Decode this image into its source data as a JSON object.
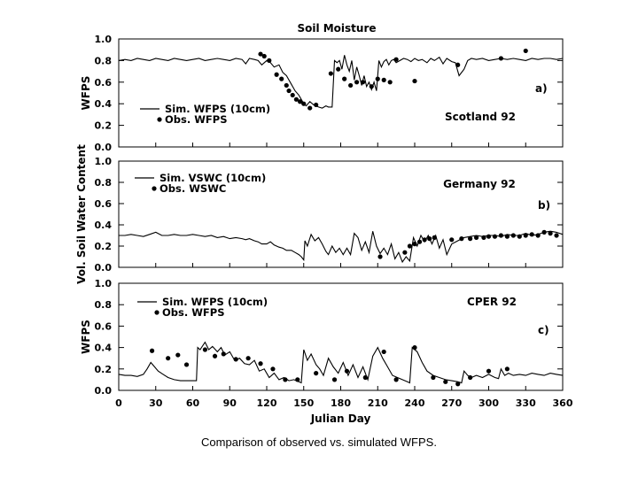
{
  "figure": {
    "title": "Soil Moisture",
    "caption": "Comparison of observed vs. simulated WFPS."
  },
  "chart_data": [
    {
      "type": "line",
      "panel": "a)",
      "site": "Scotland 92",
      "ylabel": "WFPS",
      "xlabel": "",
      "xlim": [
        0,
        360
      ],
      "ylim": [
        0,
        1.0
      ],
      "yticks": [
        "0.0",
        "0.2",
        "0.4",
        "0.6",
        "0.8",
        "1.0"
      ],
      "legend": [
        "Sim. WFPS (10cm)",
        "Obs. WFPS"
      ],
      "series": [
        {
          "name": "Sim. WFPS (10cm)",
          "style": "line",
          "x": [
            0,
            5,
            10,
            15,
            20,
            25,
            30,
            35,
            40,
            45,
            50,
            55,
            60,
            65,
            70,
            75,
            80,
            85,
            90,
            95,
            100,
            103,
            106,
            110,
            113,
            116,
            120,
            123,
            126,
            130,
            133,
            136,
            140,
            143,
            146,
            148,
            150,
            152,
            155,
            158,
            162,
            165,
            168,
            170,
            173,
            175,
            177,
            179,
            181,
            183,
            185,
            187,
            189,
            191,
            193,
            195,
            197,
            199,
            201,
            203,
            205,
            207,
            209,
            211,
            213,
            215,
            217,
            219,
            221,
            223,
            225,
            228,
            231,
            234,
            237,
            240,
            243,
            246,
            250,
            253,
            256,
            260,
            263,
            266,
            270,
            273,
            276,
            280,
            283,
            286,
            290,
            295,
            300,
            305,
            310,
            315,
            320,
            325,
            330,
            335,
            340,
            345,
            350,
            355,
            360
          ],
          "y": [
            0.8,
            0.81,
            0.8,
            0.82,
            0.81,
            0.8,
            0.82,
            0.81,
            0.8,
            0.82,
            0.81,
            0.8,
            0.81,
            0.82,
            0.8,
            0.81,
            0.82,
            0.81,
            0.8,
            0.82,
            0.81,
            0.77,
            0.82,
            0.81,
            0.8,
            0.76,
            0.8,
            0.78,
            0.74,
            0.76,
            0.69,
            0.66,
            0.58,
            0.52,
            0.48,
            0.44,
            0.4,
            0.38,
            0.42,
            0.39,
            0.37,
            0.36,
            0.38,
            0.37,
            0.37,
            0.8,
            0.78,
            0.8,
            0.72,
            0.85,
            0.76,
            0.7,
            0.8,
            0.62,
            0.74,
            0.66,
            0.57,
            0.66,
            0.56,
            0.6,
            0.53,
            0.6,
            0.52,
            0.8,
            0.74,
            0.79,
            0.81,
            0.76,
            0.8,
            0.81,
            0.78,
            0.8,
            0.82,
            0.81,
            0.79,
            0.82,
            0.8,
            0.81,
            0.78,
            0.82,
            0.8,
            0.83,
            0.77,
            0.82,
            0.79,
            0.78,
            0.66,
            0.72,
            0.8,
            0.82,
            0.81,
            0.82,
            0.8,
            0.81,
            0.82,
            0.81,
            0.82,
            0.81,
            0.8,
            0.82,
            0.81,
            0.82,
            0.82,
            0.81,
            0.82
          ]
        },
        {
          "name": "Obs. WFPS",
          "style": "points",
          "x": [
            115,
            118,
            122,
            128,
            132,
            136,
            138,
            141,
            144,
            147,
            150,
            155,
            160,
            172,
            178,
            183,
            188,
            193,
            198,
            205,
            210,
            215,
            220,
            225,
            240,
            275,
            310,
            330
          ],
          "y": [
            0.86,
            0.84,
            0.8,
            0.67,
            0.63,
            0.57,
            0.52,
            0.48,
            0.44,
            0.42,
            0.4,
            0.36,
            0.39,
            0.68,
            0.72,
            0.63,
            0.57,
            0.6,
            0.6,
            0.56,
            0.63,
            0.62,
            0.6,
            0.81,
            0.61,
            0.76,
            0.82,
            0.89
          ]
        }
      ]
    },
    {
      "type": "line",
      "panel": "b)",
      "site": "Germany 92",
      "ylabel": "Vol. Soil Water Content",
      "xlabel": "",
      "xlim": [
        0,
        360
      ],
      "ylim": [
        0,
        1.0
      ],
      "yticks": [
        "0.0",
        "0.2",
        "0.4",
        "0.6",
        "0.8",
        "1.0"
      ],
      "legend": [
        "Sim. VSWC (10cm)",
        "Obs. WSWC"
      ],
      "series": [
        {
          "name": "Sim. VSWC (10cm)",
          "style": "line",
          "x": [
            0,
            5,
            10,
            15,
            20,
            25,
            30,
            35,
            40,
            45,
            50,
            55,
            60,
            65,
            70,
            75,
            80,
            85,
            90,
            95,
            100,
            103,
            106,
            110,
            113,
            116,
            120,
            123,
            126,
            130,
            133,
            136,
            140,
            143,
            146,
            148,
            150,
            151,
            153,
            156,
            159,
            162,
            165,
            168,
            170,
            173,
            176,
            179,
            182,
            185,
            188,
            191,
            194,
            197,
            200,
            203,
            206,
            209,
            212,
            215,
            218,
            221,
            224,
            227,
            230,
            233,
            236,
            239,
            242,
            245,
            248,
            251,
            254,
            257,
            260,
            263,
            266,
            270,
            275,
            280,
            285,
            290,
            295,
            300,
            305,
            310,
            315,
            320,
            325,
            330,
            335,
            340,
            345,
            350,
            355,
            360
          ],
          "y": [
            0.3,
            0.3,
            0.31,
            0.3,
            0.29,
            0.31,
            0.33,
            0.3,
            0.3,
            0.31,
            0.3,
            0.3,
            0.31,
            0.3,
            0.29,
            0.3,
            0.28,
            0.29,
            0.27,
            0.28,
            0.27,
            0.26,
            0.27,
            0.25,
            0.24,
            0.22,
            0.22,
            0.24,
            0.21,
            0.19,
            0.18,
            0.16,
            0.16,
            0.14,
            0.12,
            0.1,
            0.07,
            0.25,
            0.2,
            0.31,
            0.25,
            0.28,
            0.22,
            0.15,
            0.12,
            0.2,
            0.14,
            0.18,
            0.12,
            0.18,
            0.12,
            0.32,
            0.28,
            0.16,
            0.24,
            0.14,
            0.34,
            0.2,
            0.13,
            0.18,
            0.12,
            0.22,
            0.08,
            0.14,
            0.05,
            0.1,
            0.06,
            0.28,
            0.2,
            0.3,
            0.24,
            0.3,
            0.22,
            0.3,
            0.18,
            0.26,
            0.12,
            0.22,
            0.25,
            0.28,
            0.29,
            0.3,
            0.29,
            0.3,
            0.3,
            0.29,
            0.31,
            0.3,
            0.3,
            0.32,
            0.3,
            0.31,
            0.33,
            0.34,
            0.33,
            0.31
          ]
        },
        {
          "name": "Obs. WSWC",
          "style": "points",
          "x": [
            212,
            232,
            236,
            240,
            244,
            248,
            252,
            256,
            270,
            278,
            285,
            290,
            296,
            300,
            305,
            310,
            315,
            320,
            325,
            330,
            335,
            340,
            345,
            350,
            355
          ],
          "y": [
            0.1,
            0.14,
            0.2,
            0.22,
            0.24,
            0.26,
            0.27,
            0.28,
            0.26,
            0.27,
            0.27,
            0.28,
            0.28,
            0.29,
            0.29,
            0.3,
            0.29,
            0.3,
            0.29,
            0.3,
            0.31,
            0.3,
            0.33,
            0.32,
            0.3
          ]
        }
      ]
    },
    {
      "type": "line",
      "panel": "c)",
      "site": "CPER 92",
      "ylabel": "WFPS",
      "xlabel": "Julian Day",
      "xlim": [
        0,
        360
      ],
      "xticks": [
        "0",
        "30",
        "60",
        "90",
        "120",
        "150",
        "180",
        "210",
        "240",
        "270",
        "300",
        "330",
        "360"
      ],
      "ylim": [
        0,
        1.0
      ],
      "yticks": [
        "0.0",
        "0.2",
        "0.4",
        "0.6",
        "0.8",
        "1.0"
      ],
      "legend": [
        "Sim. WFPS (10cm)",
        "Obs. WFPS"
      ],
      "series": [
        {
          "name": "Sim. WFPS (10cm)",
          "style": "line",
          "x": [
            0,
            5,
            10,
            15,
            20,
            23,
            26,
            29,
            32,
            36,
            40,
            45,
            50,
            55,
            60,
            63,
            64,
            66,
            70,
            73,
            76,
            80,
            83,
            86,
            90,
            94,
            98,
            102,
            106,
            110,
            114,
            118,
            122,
            126,
            130,
            134,
            138,
            142,
            146,
            148,
            150,
            153,
            156,
            160,
            163,
            166,
            170,
            174,
            178,
            182,
            186,
            190,
            194,
            198,
            202,
            206,
            210,
            214,
            218,
            222,
            226,
            230,
            234,
            236,
            238,
            242,
            246,
            250,
            255,
            260,
            265,
            270,
            275,
            278,
            280,
            283,
            286,
            290,
            295,
            300,
            305,
            308,
            310,
            313,
            316,
            320,
            325,
            330,
            335,
            340,
            345,
            350,
            355,
            360
          ],
          "y": [
            0.15,
            0.14,
            0.14,
            0.13,
            0.15,
            0.2,
            0.26,
            0.22,
            0.18,
            0.15,
            0.12,
            0.1,
            0.09,
            0.09,
            0.09,
            0.09,
            0.4,
            0.38,
            0.45,
            0.38,
            0.41,
            0.36,
            0.4,
            0.33,
            0.36,
            0.28,
            0.3,
            0.25,
            0.24,
            0.28,
            0.18,
            0.2,
            0.12,
            0.16,
            0.1,
            0.12,
            0.09,
            0.1,
            0.08,
            0.07,
            0.38,
            0.28,
            0.34,
            0.24,
            0.2,
            0.14,
            0.3,
            0.22,
            0.16,
            0.26,
            0.14,
            0.24,
            0.12,
            0.22,
            0.1,
            0.32,
            0.4,
            0.3,
            0.22,
            0.14,
            0.12,
            0.1,
            0.08,
            0.07,
            0.4,
            0.36,
            0.26,
            0.18,
            0.14,
            0.12,
            0.1,
            0.09,
            0.08,
            0.07,
            0.18,
            0.14,
            0.12,
            0.14,
            0.12,
            0.15,
            0.12,
            0.11,
            0.2,
            0.14,
            0.16,
            0.14,
            0.15,
            0.14,
            0.16,
            0.15,
            0.14,
            0.16,
            0.15,
            0.14
          ]
        },
        {
          "name": "Obs. WFPS",
          "style": "points",
          "x": [
            27,
            40,
            48,
            55,
            70,
            78,
            85,
            95,
            105,
            115,
            125,
            135,
            145,
            160,
            175,
            185,
            200,
            215,
            225,
            240,
            255,
            265,
            275,
            285,
            300,
            315
          ],
          "y": [
            0.37,
            0.3,
            0.33,
            0.24,
            0.38,
            0.32,
            0.34,
            0.29,
            0.3,
            0.25,
            0.2,
            0.1,
            0.1,
            0.16,
            0.1,
            0.18,
            0.12,
            0.36,
            0.1,
            0.4,
            0.12,
            0.08,
            0.06,
            0.12,
            0.18,
            0.2
          ]
        }
      ]
    }
  ]
}
